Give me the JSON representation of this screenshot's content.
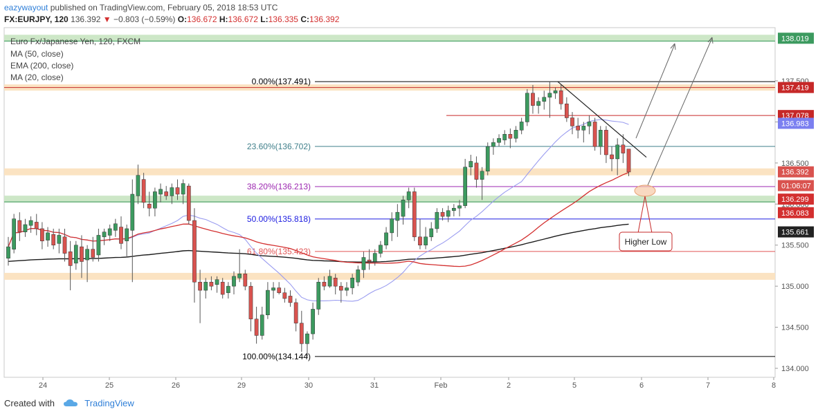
{
  "header": {
    "author": "eazywayout",
    "published_text": "published on TradingView.com, February 05, 2018 18:53 UTC",
    "symbol": "FX:EURJPY, 120",
    "last": "136.392",
    "change": "−0.803 (−0.59%)",
    "o_label": "O:",
    "o_value": "136.672",
    "h_label": "H:",
    "h_value": "136.672",
    "l_label": "L:",
    "l_value": "136.335",
    "c_label": "C:",
    "c_value": "136.392"
  },
  "legend": {
    "title": "Euro Fx/Japanese Yen, 120, FXCM",
    "items": [
      "MA (50, close)",
      "EMA (200, close)",
      "MA (20, close)"
    ]
  },
  "footer": {
    "created_with": "Created with",
    "brand": "TradingView"
  },
  "colors": {
    "bull": "#3c9a5f",
    "bear": "#d9534f",
    "ma50": "#9a9cf0",
    "ema200": "#1a1a1a",
    "ma20": "#d32f2f",
    "zone_orange": "#fbe3c2",
    "zone_green": "#cde7c7",
    "fib_0": "#000000",
    "fib_236": "#3f7f8a",
    "fib_382": "#9c27b0",
    "fib_50": "#1a1ae0",
    "fib_618": "#e05555",
    "fib_100": "#000000",
    "red_line": "#c62828"
  },
  "chart_data": {
    "type": "candlestick",
    "symbol": "FX:EURJPY",
    "timeframe": "120",
    "ylim": [
      133.9,
      138.2
    ],
    "y_ticks": [
      "134.000",
      "134.500",
      "135.000",
      "135.500",
      "136.000",
      "136.500",
      "137.000",
      "137.500"
    ],
    "x_labels": [
      "24",
      "25",
      "26",
      "29",
      "30",
      "31",
      "Feb",
      "2",
      "5",
      "6",
      "7",
      "8"
    ],
    "fibonacci": [
      {
        "label": "0.00%(137.491)",
        "price": 137.491
      },
      {
        "label": "23.60%(136.702)",
        "price": 136.702
      },
      {
        "label": "38.20%(136.213)",
        "price": 136.213
      },
      {
        "label": "50.00%(135.818)",
        "price": 135.818
      },
      {
        "label": "61.80%(135.423)",
        "price": 135.423
      },
      {
        "label": "100.00%(134.144)",
        "price": 134.144
      }
    ],
    "price_tags": [
      {
        "text": "138.019",
        "price": 138.019,
        "color": "#3c9a5f"
      },
      {
        "text": "137.419",
        "price": 137.419,
        "color": "#c62828"
      },
      {
        "text": "137.078",
        "price": 137.078,
        "color": "#c62828"
      },
      {
        "text": "136.983",
        "price": 136.983,
        "color": "#7b7ff0"
      },
      {
        "text": "136.392",
        "price": 136.392,
        "color": "#d9534f"
      },
      {
        "text": "01:06:07",
        "price": 136.225,
        "color": "#d9534f"
      },
      {
        "text": "136.299",
        "price": 136.06,
        "color": "#d32f2f"
      },
      {
        "text": "136.083",
        "price": 135.895,
        "color": "#d32f2f"
      },
      {
        "text": "135.661",
        "price": 135.661,
        "color": "#222222"
      }
    ],
    "annotation": "Higher Low",
    "ohlc": [
      {
        "x": 0,
        "o": 135.34,
        "h": 135.6,
        "l": 135.25,
        "c": 135.48
      },
      {
        "x": 1,
        "o": 135.45,
        "h": 135.88,
        "l": 135.4,
        "c": 135.82
      },
      {
        "x": 2,
        "o": 135.8,
        "h": 135.9,
        "l": 135.55,
        "c": 135.66
      },
      {
        "x": 3,
        "o": 135.66,
        "h": 135.82,
        "l": 135.6,
        "c": 135.75
      },
      {
        "x": 4,
        "o": 135.74,
        "h": 135.85,
        "l": 135.65,
        "c": 135.8
      },
      {
        "x": 5,
        "o": 135.78,
        "h": 135.88,
        "l": 135.62,
        "c": 135.7
      },
      {
        "x": 6,
        "o": 135.7,
        "h": 135.78,
        "l": 135.45,
        "c": 135.55
      },
      {
        "x": 7,
        "o": 135.56,
        "h": 135.72,
        "l": 135.48,
        "c": 135.65
      },
      {
        "x": 8,
        "o": 135.63,
        "h": 135.7,
        "l": 135.45,
        "c": 135.5
      },
      {
        "x": 9,
        "o": 135.52,
        "h": 135.7,
        "l": 135.4,
        "c": 135.62
      },
      {
        "x": 10,
        "o": 135.6,
        "h": 135.7,
        "l": 135.3,
        "c": 135.4
      },
      {
        "x": 11,
        "o": 135.42,
        "h": 135.55,
        "l": 134.95,
        "c": 135.25
      },
      {
        "x": 12,
        "o": 135.28,
        "h": 135.55,
        "l": 135.2,
        "c": 135.5
      },
      {
        "x": 13,
        "o": 135.48,
        "h": 135.62,
        "l": 135.1,
        "c": 135.3
      },
      {
        "x": 14,
        "o": 135.32,
        "h": 135.5,
        "l": 135.05,
        "c": 135.45
      },
      {
        "x": 15,
        "o": 135.45,
        "h": 135.6,
        "l": 135.3,
        "c": 135.35
      },
      {
        "x": 16,
        "o": 135.38,
        "h": 135.7,
        "l": 135.3,
        "c": 135.62
      },
      {
        "x": 17,
        "o": 135.6,
        "h": 135.7,
        "l": 135.5,
        "c": 135.66
      },
      {
        "x": 18,
        "o": 135.62,
        "h": 135.75,
        "l": 135.55,
        "c": 135.7
      },
      {
        "x": 19,
        "o": 135.68,
        "h": 135.82,
        "l": 135.6,
        "c": 135.76
      },
      {
        "x": 20,
        "o": 135.72,
        "h": 135.85,
        "l": 135.45,
        "c": 135.52
      },
      {
        "x": 21,
        "o": 135.55,
        "h": 135.75,
        "l": 135.35,
        "c": 135.7
      },
      {
        "x": 22,
        "o": 135.68,
        "h": 136.3,
        "l": 135.05,
        "c": 136.12
      },
      {
        "x": 23,
        "o": 136.1,
        "h": 136.48,
        "l": 136.0,
        "c": 136.35
      },
      {
        "x": 24,
        "o": 136.3,
        "h": 136.38,
        "l": 135.95,
        "c": 136.02
      },
      {
        "x": 25,
        "o": 136.0,
        "h": 136.15,
        "l": 135.85,
        "c": 135.95
      },
      {
        "x": 26,
        "o": 135.95,
        "h": 136.2,
        "l": 135.85,
        "c": 136.15
      },
      {
        "x": 27,
        "o": 136.12,
        "h": 136.25,
        "l": 136.02,
        "c": 136.18
      },
      {
        "x": 28,
        "o": 136.15,
        "h": 136.22,
        "l": 136.05,
        "c": 136.1
      },
      {
        "x": 29,
        "o": 136.1,
        "h": 136.25,
        "l": 136.0,
        "c": 136.2
      },
      {
        "x": 30,
        "o": 136.2,
        "h": 136.3,
        "l": 136.05,
        "c": 136.12
      },
      {
        "x": 31,
        "o": 136.12,
        "h": 136.3,
        "l": 136.0,
        "c": 136.25
      },
      {
        "x": 32,
        "o": 136.22,
        "h": 136.25,
        "l": 135.75,
        "c": 135.8
      },
      {
        "x": 33,
        "o": 135.8,
        "h": 135.95,
        "l": 134.8,
        "c": 135.05
      },
      {
        "x": 34,
        "o": 135.05,
        "h": 135.2,
        "l": 134.55,
        "c": 134.95
      },
      {
        "x": 35,
        "o": 134.95,
        "h": 135.1,
        "l": 134.85,
        "c": 135.05
      },
      {
        "x": 36,
        "o": 135.05,
        "h": 135.12,
        "l": 134.95,
        "c": 135.0
      },
      {
        "x": 37,
        "o": 135.02,
        "h": 135.12,
        "l": 134.92,
        "c": 135.08
      },
      {
        "x": 38,
        "o": 135.05,
        "h": 135.1,
        "l": 134.85,
        "c": 134.9
      },
      {
        "x": 39,
        "o": 134.92,
        "h": 135.05,
        "l": 134.85,
        "c": 135.0
      },
      {
        "x": 40,
        "o": 135.0,
        "h": 135.18,
        "l": 134.9,
        "c": 135.12
      },
      {
        "x": 41,
        "o": 135.1,
        "h": 135.45,
        "l": 135.05,
        "c": 135.15
      },
      {
        "x": 42,
        "o": 135.15,
        "h": 135.2,
        "l": 134.95,
        "c": 135.0
      },
      {
        "x": 43,
        "o": 135.0,
        "h": 135.05,
        "l": 134.45,
        "c": 134.6
      },
      {
        "x": 44,
        "o": 134.6,
        "h": 134.75,
        "l": 134.3,
        "c": 134.4
      },
      {
        "x": 45,
        "o": 134.4,
        "h": 134.75,
        "l": 134.35,
        "c": 134.65
      },
      {
        "x": 46,
        "o": 134.65,
        "h": 135.05,
        "l": 134.6,
        "c": 134.95
      },
      {
        "x": 47,
        "o": 134.95,
        "h": 135.05,
        "l": 134.85,
        "c": 134.98
      },
      {
        "x": 48,
        "o": 134.98,
        "h": 135.05,
        "l": 134.9,
        "c": 134.92
      },
      {
        "x": 49,
        "o": 134.92,
        "h": 134.98,
        "l": 134.8,
        "c": 134.85
      },
      {
        "x": 50,
        "o": 134.88,
        "h": 134.95,
        "l": 134.75,
        "c": 134.8
      },
      {
        "x": 51,
        "o": 134.8,
        "h": 134.85,
        "l": 134.45,
        "c": 134.55
      },
      {
        "x": 52,
        "o": 134.55,
        "h": 134.7,
        "l": 134.2,
        "c": 134.3
      },
      {
        "x": 53,
        "o": 134.3,
        "h": 134.45,
        "l": 134.14,
        "c": 134.42
      },
      {
        "x": 54,
        "o": 134.42,
        "h": 134.8,
        "l": 134.35,
        "c": 134.72
      },
      {
        "x": 55,
        "o": 134.72,
        "h": 135.1,
        "l": 134.65,
        "c": 135.05
      },
      {
        "x": 56,
        "o": 135.05,
        "h": 135.12,
        "l": 134.95,
        "c": 135.0
      },
      {
        "x": 57,
        "o": 135.0,
        "h": 135.2,
        "l": 134.98,
        "c": 135.12
      },
      {
        "x": 58,
        "o": 135.1,
        "h": 135.15,
        "l": 134.9,
        "c": 135.0
      },
      {
        "x": 59,
        "o": 135.0,
        "h": 135.05,
        "l": 134.8,
        "c": 134.95
      },
      {
        "x": 60,
        "o": 134.95,
        "h": 135.05,
        "l": 134.88,
        "c": 134.98
      },
      {
        "x": 61,
        "o": 134.98,
        "h": 135.15,
        "l": 134.9,
        "c": 135.1
      },
      {
        "x": 62,
        "o": 135.05,
        "h": 135.25,
        "l": 135.0,
        "c": 135.2
      },
      {
        "x": 63,
        "o": 135.2,
        "h": 135.42,
        "l": 135.1,
        "c": 135.35
      },
      {
        "x": 64,
        "o": 135.32,
        "h": 135.45,
        "l": 135.2,
        "c": 135.3
      },
      {
        "x": 65,
        "o": 135.3,
        "h": 135.45,
        "l": 135.25,
        "c": 135.4
      },
      {
        "x": 66,
        "o": 135.4,
        "h": 135.55,
        "l": 135.35,
        "c": 135.5
      },
      {
        "x": 67,
        "o": 135.5,
        "h": 135.72,
        "l": 135.45,
        "c": 135.65
      },
      {
        "x": 68,
        "o": 135.65,
        "h": 135.9,
        "l": 135.55,
        "c": 135.82
      },
      {
        "x": 69,
        "o": 135.8,
        "h": 136.0,
        "l": 135.6,
        "c": 135.9
      },
      {
        "x": 70,
        "o": 135.85,
        "h": 136.1,
        "l": 135.75,
        "c": 136.05
      },
      {
        "x": 71,
        "o": 136.05,
        "h": 136.2,
        "l": 135.95,
        "c": 136.15
      },
      {
        "x": 72,
        "o": 136.15,
        "h": 136.2,
        "l": 135.55,
        "c": 135.6
      },
      {
        "x": 73,
        "o": 135.6,
        "h": 135.82,
        "l": 135.45,
        "c": 135.5
      },
      {
        "x": 74,
        "o": 135.5,
        "h": 135.72,
        "l": 135.45,
        "c": 135.6
      },
      {
        "x": 75,
        "o": 135.6,
        "h": 135.78,
        "l": 135.55,
        "c": 135.7
      },
      {
        "x": 76,
        "o": 135.7,
        "h": 135.95,
        "l": 135.65,
        "c": 135.9
      },
      {
        "x": 77,
        "o": 135.9,
        "h": 135.95,
        "l": 135.8,
        "c": 135.85
      },
      {
        "x": 78,
        "o": 135.85,
        "h": 135.98,
        "l": 135.78,
        "c": 135.92
      },
      {
        "x": 79,
        "o": 135.92,
        "h": 136.0,
        "l": 135.85,
        "c": 135.95
      },
      {
        "x": 80,
        "o": 135.95,
        "h": 136.05,
        "l": 135.85,
        "c": 135.98
      },
      {
        "x": 81,
        "o": 135.98,
        "h": 136.55,
        "l": 135.95,
        "c": 136.45
      },
      {
        "x": 82,
        "o": 136.45,
        "h": 136.6,
        "l": 136.35,
        "c": 136.52
      },
      {
        "x": 83,
        "o": 136.5,
        "h": 136.58,
        "l": 136.2,
        "c": 136.3
      },
      {
        "x": 84,
        "o": 136.3,
        "h": 136.45,
        "l": 136.05,
        "c": 136.4
      },
      {
        "x": 85,
        "o": 136.4,
        "h": 136.75,
        "l": 136.35,
        "c": 136.7
      },
      {
        "x": 86,
        "o": 136.7,
        "h": 136.8,
        "l": 136.6,
        "c": 136.75
      },
      {
        "x": 87,
        "o": 136.75,
        "h": 136.85,
        "l": 136.7,
        "c": 136.8
      },
      {
        "x": 88,
        "o": 136.78,
        "h": 136.9,
        "l": 136.72,
        "c": 136.85
      },
      {
        "x": 89,
        "o": 136.85,
        "h": 136.92,
        "l": 136.68,
        "c": 136.8
      },
      {
        "x": 90,
        "o": 136.8,
        "h": 136.95,
        "l": 136.75,
        "c": 136.9
      },
      {
        "x": 91,
        "o": 136.9,
        "h": 137.05,
        "l": 136.85,
        "c": 137.0
      },
      {
        "x": 92,
        "o": 137.0,
        "h": 137.4,
        "l": 136.95,
        "c": 137.35
      },
      {
        "x": 93,
        "o": 137.35,
        "h": 137.45,
        "l": 137.1,
        "c": 137.2
      },
      {
        "x": 94,
        "o": 137.2,
        "h": 137.3,
        "l": 137.1,
        "c": 137.25
      },
      {
        "x": 95,
        "o": 137.25,
        "h": 137.38,
        "l": 137.15,
        "c": 137.3
      },
      {
        "x": 96,
        "o": 137.3,
        "h": 137.49,
        "l": 137.05,
        "c": 137.35
      },
      {
        "x": 97,
        "o": 137.35,
        "h": 137.42,
        "l": 137.28,
        "c": 137.38
      },
      {
        "x": 98,
        "o": 137.38,
        "h": 137.45,
        "l": 137.15,
        "c": 137.22
      },
      {
        "x": 99,
        "o": 137.22,
        "h": 137.3,
        "l": 137.0,
        "c": 137.05
      },
      {
        "x": 100,
        "o": 137.05,
        "h": 137.12,
        "l": 136.85,
        "c": 136.95
      },
      {
        "x": 101,
        "o": 136.95,
        "h": 137.05,
        "l": 136.8,
        "c": 136.9
      },
      {
        "x": 102,
        "o": 136.9,
        "h": 137.0,
        "l": 136.75,
        "c": 136.95
      },
      {
        "x": 103,
        "o": 136.95,
        "h": 137.08,
        "l": 136.85,
        "c": 137.0
      },
      {
        "x": 104,
        "o": 137.0,
        "h": 137.05,
        "l": 136.65,
        "c": 136.7
      },
      {
        "x": 105,
        "o": 136.7,
        "h": 136.95,
        "l": 136.6,
        "c": 136.9
      },
      {
        "x": 106,
        "o": 136.9,
        "h": 136.95,
        "l": 136.5,
        "c": 136.6
      },
      {
        "x": 107,
        "o": 136.6,
        "h": 136.7,
        "l": 136.4,
        "c": 136.55
      },
      {
        "x": 108,
        "o": 136.55,
        "h": 136.8,
        "l": 136.35,
        "c": 136.72
      },
      {
        "x": 109,
        "o": 136.72,
        "h": 136.85,
        "l": 136.5,
        "c": 136.62
      },
      {
        "x": 110,
        "o": 136.67,
        "h": 136.67,
        "l": 136.34,
        "c": 136.39
      }
    ]
  }
}
